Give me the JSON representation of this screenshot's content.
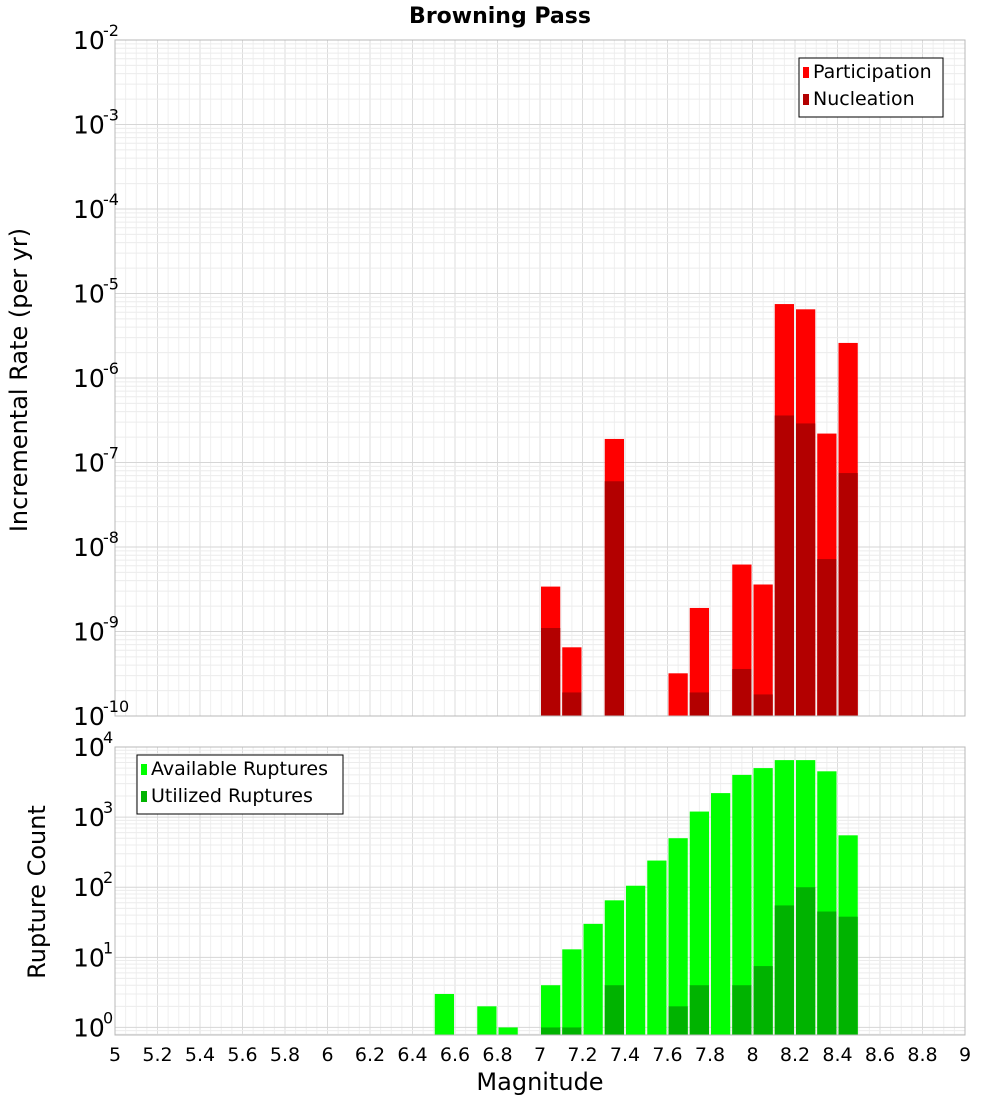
{
  "chart_data": [
    {
      "type": "bar",
      "title": "Browning Pass",
      "xlabel": "",
      "ylabel": "Incremental Rate (per yr)",
      "yscale": "log",
      "ylim": [
        1e-10,
        0.01
      ],
      "xlim": [
        5,
        9
      ],
      "ytick_bases": [
        "10",
        "10",
        "10",
        "10",
        "10",
        "10",
        "10",
        "10",
        "10"
      ],
      "ytick_exponents": [
        "-10",
        "-9",
        "-8",
        "-7",
        "-6",
        "-5",
        "-4",
        "-3",
        "-2"
      ],
      "grid": true,
      "legend": {
        "placement": "top-right",
        "entries": [
          "Participation",
          "Nucleation"
        ]
      },
      "series": [
        {
          "name": "Participation",
          "color": "#ff0000",
          "x": [
            7.05,
            7.15,
            7.35,
            7.65,
            7.75,
            7.95,
            8.05,
            8.15,
            8.25,
            8.35,
            8.45
          ],
          "values": [
            3.4e-09,
            6.5e-10,
            1.9e-07,
            3.2e-10,
            1.9e-09,
            6.2e-09,
            3.6e-09,
            7.5e-06,
            6.5e-06,
            2.2e-07,
            2.6e-06
          ]
        },
        {
          "name": "Nucleation",
          "color": "#b30000",
          "x": [
            7.05,
            7.15,
            7.35,
            7.75,
            7.95,
            8.05,
            8.15,
            8.25,
            8.35,
            8.45
          ],
          "values": [
            1.1e-09,
            1.9e-10,
            6e-08,
            1.9e-10,
            3.6e-10,
            1.8e-10,
            3.6e-07,
            2.9e-07,
            7.2e-09,
            7.5e-08
          ]
        }
      ]
    },
    {
      "type": "bar",
      "title": "",
      "xlabel": "Magnitude",
      "ylabel": "Rupture Count",
      "yscale": "log",
      "ylim": [
        0.78,
        10000
      ],
      "xlim": [
        5,
        9
      ],
      "xticks": [
        "5",
        "5.2",
        "5.4",
        "5.6",
        "5.8",
        "6",
        "6.2",
        "6.4",
        "6.6",
        "6.8",
        "7",
        "7.2",
        "7.4",
        "7.6",
        "7.8",
        "8",
        "8.2",
        "8.4",
        "8.6",
        "8.8",
        "9"
      ],
      "ytick_bases": [
        "10",
        "10",
        "10",
        "10",
        "10"
      ],
      "ytick_exponents": [
        "0",
        "1",
        "2",
        "3",
        "4"
      ],
      "grid": true,
      "legend": {
        "placement": "top-left",
        "entries": [
          "Available Ruptures",
          "Utilized Ruptures"
        ]
      },
      "series": [
        {
          "name": "Available Ruptures",
          "color": "#00ff00",
          "x": [
            6.55,
            6.75,
            6.85,
            7.05,
            7.15,
            7.25,
            7.35,
            7.45,
            7.55,
            7.65,
            7.75,
            7.85,
            7.95,
            8.05,
            8.15,
            8.25,
            8.35,
            8.45
          ],
          "values": [
            3,
            2,
            1,
            4,
            13,
            30,
            65,
            105,
            240,
            500,
            1200,
            2200,
            4000,
            5000,
            6500,
            6500,
            4500,
            550
          ]
        },
        {
          "name": "Utilized Ruptures",
          "color": "#00b300",
          "x": [
            7.05,
            7.15,
            7.35,
            7.65,
            7.75,
            7.95,
            8.05,
            8.15,
            8.25,
            8.35,
            8.45
          ],
          "values": [
            1,
            1,
            4,
            2,
            4,
            4,
            7.5,
            55,
            100,
            45,
            38
          ]
        }
      ]
    }
  ]
}
